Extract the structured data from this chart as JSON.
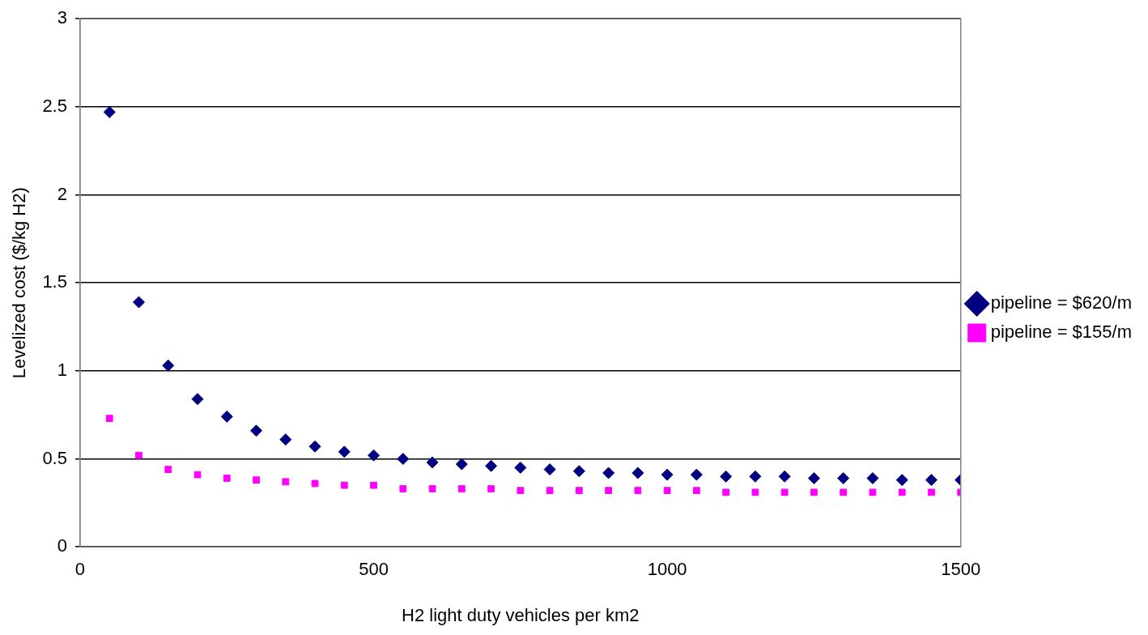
{
  "chart_data": {
    "type": "scatter",
    "xlabel": "H2 light duty vehicles per km2",
    "ylabel": "Levelized cost ($/kg H2)",
    "x": [
      50,
      100,
      150,
      200,
      250,
      300,
      350,
      400,
      450,
      500,
      550,
      600,
      650,
      700,
      750,
      800,
      850,
      900,
      950,
      1000,
      1050,
      1100,
      1150,
      1200,
      1250,
      1300,
      1350,
      1400,
      1450,
      1500
    ],
    "series": [
      {
        "name": "pipeline = $620/m",
        "color": "#000080",
        "marker": "diamond",
        "values": [
          2.47,
          1.39,
          1.03,
          0.84,
          0.74,
          0.66,
          0.61,
          0.57,
          0.54,
          0.52,
          0.5,
          0.48,
          0.47,
          0.46,
          0.45,
          0.44,
          0.43,
          0.42,
          0.42,
          0.41,
          0.41,
          0.4,
          0.4,
          0.4,
          0.39,
          0.39,
          0.39,
          0.38,
          0.38,
          0.38
        ]
      },
      {
        "name": "pipeline = $155/m",
        "color": "#ff00ff",
        "marker": "square",
        "values": [
          0.73,
          0.52,
          0.44,
          0.41,
          0.39,
          0.38,
          0.37,
          0.36,
          0.35,
          0.35,
          0.33,
          0.33,
          0.33,
          0.33,
          0.32,
          0.32,
          0.32,
          0.32,
          0.32,
          0.32,
          0.32,
          0.31,
          0.31,
          0.31,
          0.31,
          0.31,
          0.31,
          0.31,
          0.31,
          0.31
        ]
      }
    ],
    "xlim": [
      0,
      1500
    ],
    "xticks": [
      0,
      500,
      1000,
      1500
    ],
    "ylim": [
      0,
      3
    ],
    "yticks": [
      0,
      0.5,
      1,
      1.5,
      2,
      2.5,
      3
    ],
    "grid": "y",
    "legend": "right"
  }
}
